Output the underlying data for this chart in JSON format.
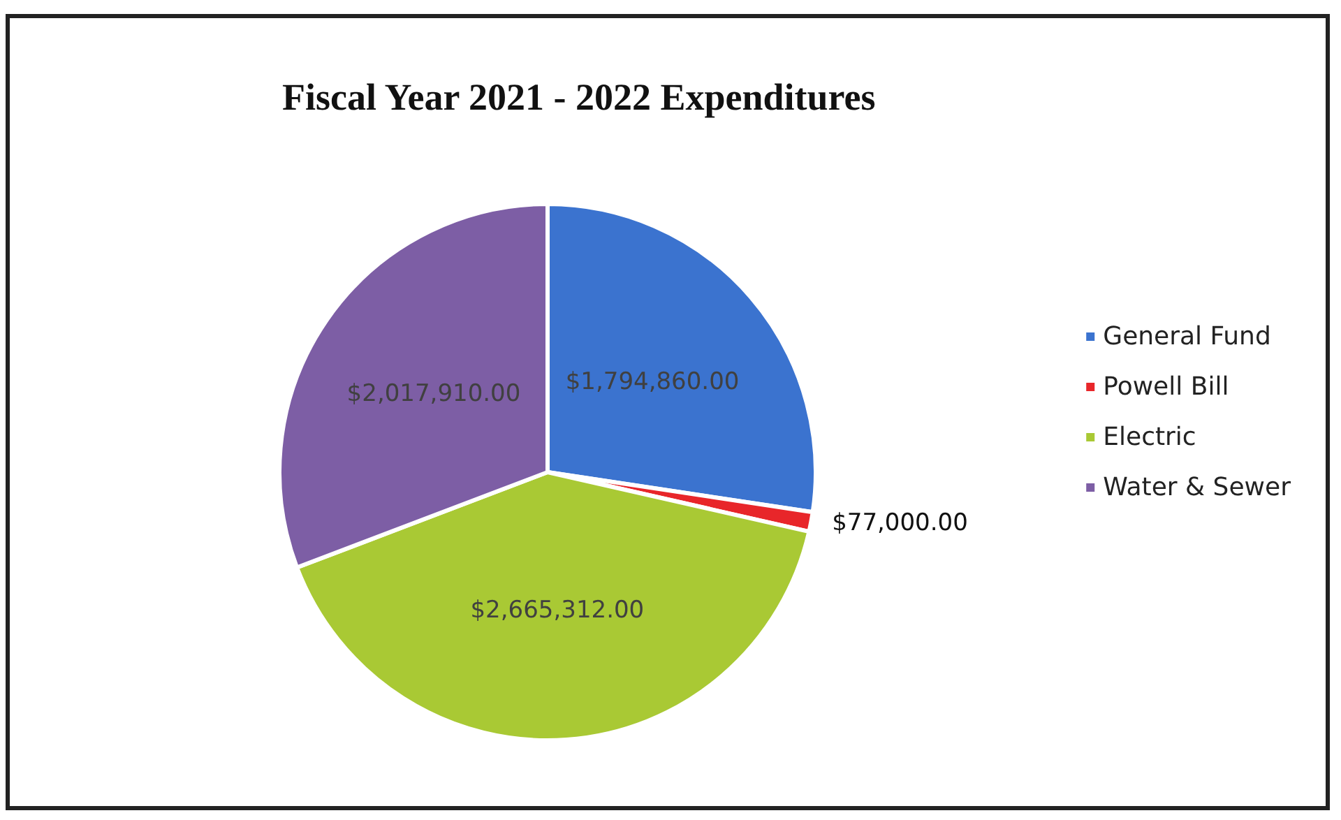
{
  "chart_data": {
    "type": "pie",
    "title": "Fiscal Year 2021 - 2022 Expenditures",
    "categories": [
      "General Fund",
      "Powell Bill",
      "Electric",
      "Water & Sewer"
    ],
    "values": [
      1794860,
      77000,
      2665312,
      2017910
    ],
    "value_labels": [
      "$1,794,860.00",
      "$77,000.00",
      "$2,665,312.00",
      "$2,017,910.00"
    ],
    "colors": [
      "#3b73cf",
      "#e8262a",
      "#a9c934",
      "#7d5ea5"
    ],
    "legend": "right"
  }
}
